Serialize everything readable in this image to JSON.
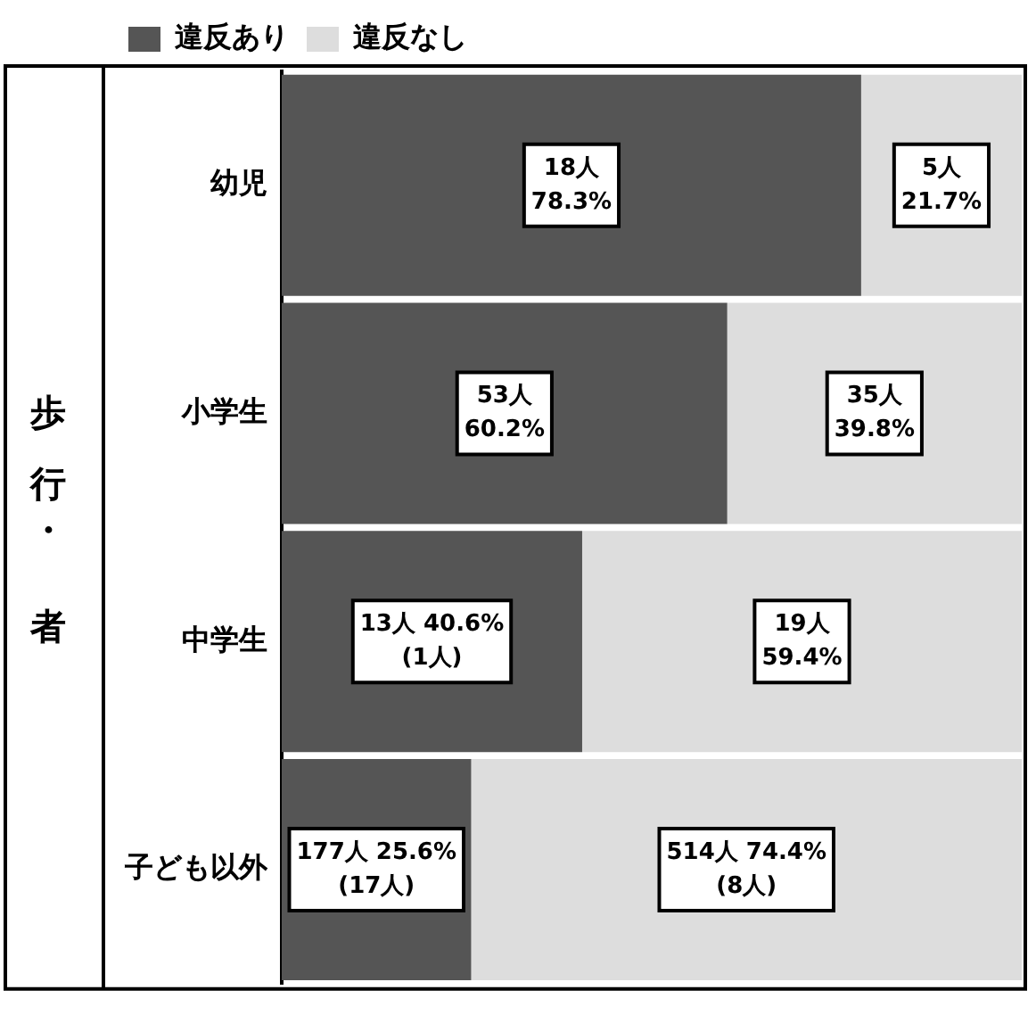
{
  "chart_data": {
    "type": "bar",
    "orientation": "horizontal",
    "stacked": true,
    "ylabel": "歩行・者",
    "categories": [
      "幼児",
      "小学生",
      "中学生",
      "子ども以外"
    ],
    "series": [
      {
        "name": "違反あり",
        "color": "#555555",
        "values": [
          78.3,
          60.2,
          40.6,
          25.6
        ],
        "value_labels": [
          "18人\n78.3%",
          "53人\n60.2%",
          "13人 40.6%\n(1人)",
          "177人 25.6%\n(17人)"
        ]
      },
      {
        "name": "違反なし",
        "color": "#dddddd",
        "values": [
          21.7,
          39.8,
          59.4,
          74.4
        ],
        "value_labels": [
          "5人\n21.7%",
          "35人\n39.8%",
          "19人\n59.4%",
          "514人 74.4%\n(8人)"
        ]
      }
    ],
    "xlim": [
      0,
      100
    ],
    "tick_labels": "y",
    "legend": "top"
  }
}
